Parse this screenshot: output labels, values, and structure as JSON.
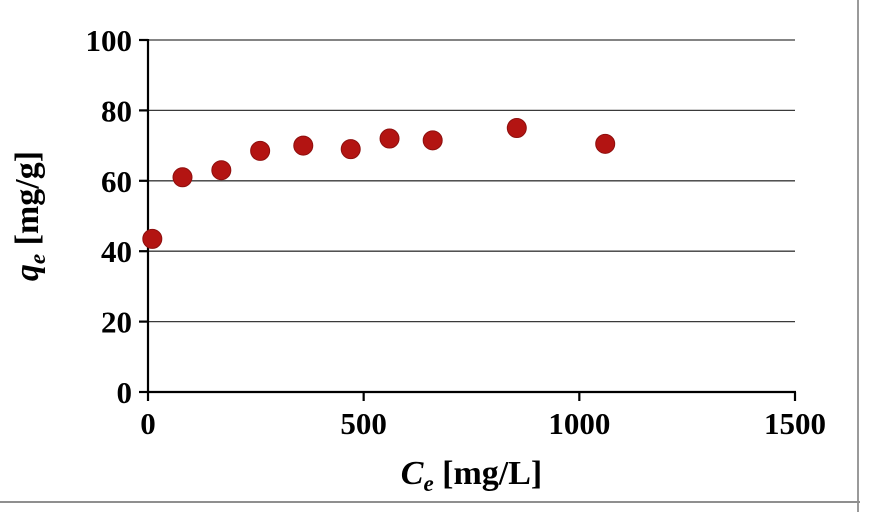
{
  "page": {
    "background": "#ffffff",
    "border_color": "#9a9a9a"
  },
  "chart_data": {
    "type": "scatter",
    "title": "",
    "xlabel": "Ce [mg/L]",
    "ylabel": "qe [mg/g]",
    "xlabel_parts": {
      "symbol": "C",
      "subscript": "e",
      "units": " [mg/L]"
    },
    "ylabel_parts": {
      "symbol": "q",
      "subscript": "e",
      "units": " [mg/g]"
    },
    "xlim": [
      0,
      1500
    ],
    "ylim": [
      0,
      100
    ],
    "x_ticks": [
      0,
      500,
      1000,
      1500
    ],
    "y_ticks": [
      0,
      20,
      40,
      60,
      80,
      100
    ],
    "grid": "horizontal",
    "legend": "none",
    "marker_color": "#b31412",
    "axis_color": "#000000",
    "gridline_color": "#3a3a3a",
    "points": [
      {
        "x": 10,
        "y": 43.5
      },
      {
        "x": 80,
        "y": 61
      },
      {
        "x": 170,
        "y": 63
      },
      {
        "x": 260,
        "y": 68.5
      },
      {
        "x": 360,
        "y": 70
      },
      {
        "x": 470,
        "y": 69
      },
      {
        "x": 560,
        "y": 72
      },
      {
        "x": 660,
        "y": 71.5
      },
      {
        "x": 855,
        "y": 75
      },
      {
        "x": 1060,
        "y": 70.5
      }
    ]
  }
}
